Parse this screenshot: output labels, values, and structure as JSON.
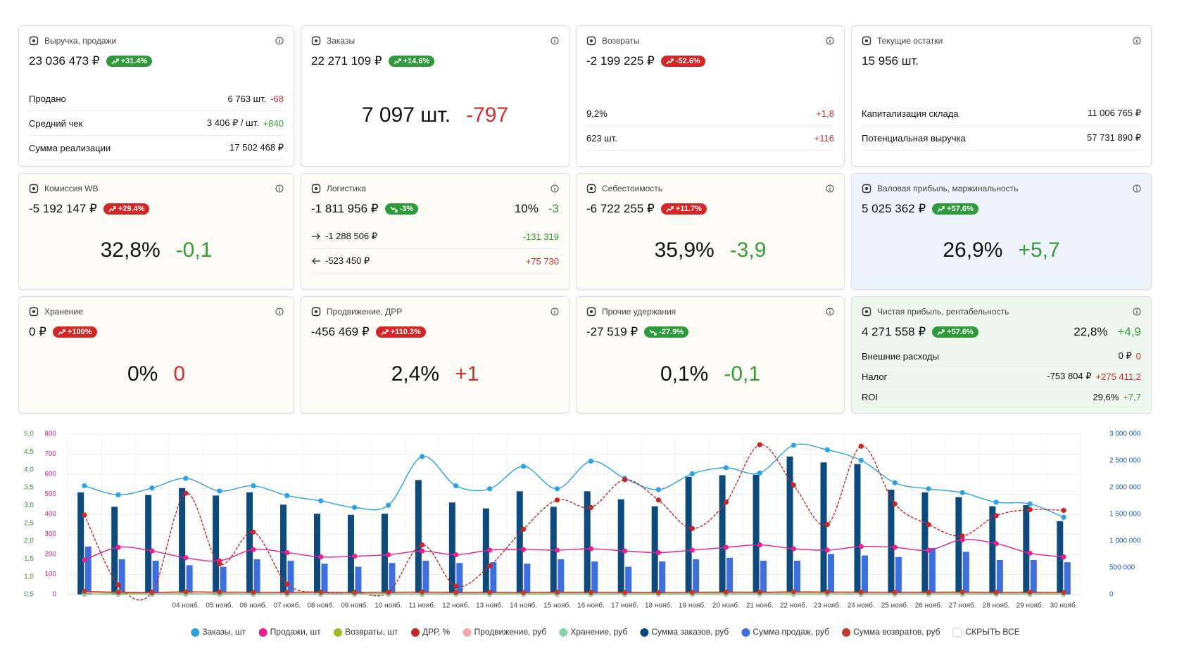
{
  "cards": [
    {
      "title": "Выручка, продажи",
      "value": "23 036 473 ₽",
      "background": "#ffffff",
      "badge": {
        "text": "+31.4%",
        "color": "green",
        "trend": "up"
      },
      "rows": [
        {
          "label": "Продано",
          "value": "6 763 шт.",
          "delta": "-68",
          "color": "red"
        },
        {
          "label": "Средний чек",
          "value": "3 406 ₽ / шт.",
          "delta": "+840",
          "color": "green"
        },
        {
          "label": "Сумма реализации",
          "value": "17 502 468 ₽"
        }
      ]
    },
    {
      "title": "Заказы",
      "value": "22 271 109 ₽",
      "background": "#ffffff",
      "badge": {
        "text": "+14.6%",
        "color": "green",
        "trend": "up"
      },
      "big": {
        "value": "7 097 шт.",
        "delta": "-797",
        "color": "red"
      }
    },
    {
      "title": "Возвраты",
      "value": "-2 199 225 ₽",
      "background": "#ffffff",
      "badge": {
        "text": "-52.6%",
        "color": "red",
        "trend": "up"
      },
      "rows": [
        {
          "label": "9,2%",
          "delta": "+1,8",
          "color": "red"
        },
        {
          "label": "623 шт.",
          "delta": "+116",
          "color": "red"
        }
      ]
    },
    {
      "title": "Текущие остатки",
      "value": "15 956 шт.",
      "background": "#ffffff",
      "rows": [
        {
          "label": "Капитализация склада",
          "value": "11 006 765 ₽"
        },
        {
          "label": "Потенциальная выручка",
          "value": "57 731 890 ₽"
        }
      ]
    },
    {
      "title": "Комиссия WB",
      "value": "-5 192 147 ₽",
      "background": "#fdfbf6",
      "badge": {
        "text": "+29.4%",
        "color": "red",
        "trend": "up"
      },
      "big": {
        "value": "32,8%",
        "delta": "-0,1",
        "color": "green"
      }
    },
    {
      "title": "Логистика",
      "value": "-1 811 956 ₽",
      "background": "#fdfbf6",
      "badge": {
        "text": "-3%",
        "color": "green",
        "trend": "down"
      },
      "side": {
        "value": "10%",
        "delta": "-3",
        "color": "green"
      },
      "rows": [
        {
          "direction": "right",
          "label": "-1 288 506 ₽",
          "delta": "-131 319",
          "color": "green"
        },
        {
          "direction": "left",
          "label": "-523 450 ₽",
          "delta": "+75 730",
          "color": "red"
        }
      ]
    },
    {
      "title": "Себестоимость",
      "value": "-6 722 255 ₽",
      "background": "#fdfbf6",
      "badge": {
        "text": "+11.7%",
        "color": "red",
        "trend": "up"
      },
      "big": {
        "value": "35,9%",
        "delta": "-3,9",
        "color": "green"
      }
    },
    {
      "title": "Валовая прибыль, маржинальность",
      "value": "5 025 362 ₽",
      "background": "#eef4fb",
      "badge": {
        "text": "+57.6%",
        "color": "green",
        "trend": "up"
      },
      "big": {
        "value": "26,9%",
        "delta": "+5,7",
        "color": "green"
      }
    },
    {
      "title": "Хранение",
      "value": "0 ₽",
      "background": "#fdfbf6",
      "badge": {
        "text": "+100%",
        "color": "red",
        "trend": "up"
      },
      "big": {
        "value": "0%",
        "delta": "0",
        "color": "red"
      }
    },
    {
      "title": "Продвижение, ДРР",
      "value": "-456 469 ₽",
      "background": "#fdfbf6",
      "badge": {
        "text": "+110.3%",
        "color": "red",
        "trend": "up"
      },
      "big": {
        "value": "2,4%",
        "delta": "+1",
        "color": "red"
      }
    },
    {
      "title": "Прочие удержания",
      "value": "-27 519 ₽",
      "background": "#fdfbf6",
      "badge": {
        "text": "-27.9%",
        "color": "green",
        "trend": "down"
      },
      "big": {
        "value": "0,1%",
        "delta": "-0,1",
        "color": "green"
      }
    },
    {
      "title": "Чистая прибыль, рентабельность",
      "value": "4 271 558 ₽",
      "background": "#eef8ee",
      "badge": {
        "text": "+57.6%",
        "color": "green",
        "trend": "up"
      },
      "side": {
        "value": "22,8%",
        "delta": "+4,9",
        "color": "green"
      },
      "rows": [
        {
          "label": "Внешние расходы",
          "value": "0 ₽",
          "delta": "0",
          "color": "red"
        },
        {
          "label": "Налог",
          "value": "-753 804 ₽",
          "delta": "+275 411,2",
          "color": "red"
        },
        {
          "label": "ROI",
          "value": "29,6%",
          "delta": "+7,7",
          "color": "green"
        }
      ]
    }
  ],
  "chart_data": {
    "type": "combo",
    "categories": [
      null,
      null,
      null,
      "04 нояб.",
      "05 нояб.",
      "06 нояб.",
      "07 нояб.",
      "08 нояб.",
      "09 нояб.",
      "10 нояб.",
      "11 нояб.",
      "12 нояб.",
      "13 нояб.",
      "14 нояб.",
      "15 нояб.",
      "16 нояб.",
      "17 нояб.",
      "18 нояб.",
      "19 нояб.",
      "20 нояб.",
      "21 нояб.",
      "22 нояб.",
      "23 нояб.",
      "24 нояб.",
      "25 нояб.",
      "26 нояб.",
      "27 нояб.",
      "28 нояб.",
      "29 нояб.",
      "30 нояб."
    ],
    "ylim": [
      0,
      800
    ],
    "yticks": [
      0,
      100,
      200,
      300,
      400,
      500,
      600,
      700,
      800
    ],
    "y2lim": [
      0,
      3000000
    ],
    "y2ticks": [
      0,
      {
        "value": 500000,
        "label": "500 000"
      },
      {
        "value": 1000000,
        "label": "1 000 000"
      },
      {
        "value": 1500000,
        "label": "1 500 000"
      },
      {
        "value": 2000000,
        "label": "2 000 000"
      },
      {
        "value": 2500000,
        "label": "2 500 000"
      },
      {
        "value": 3000000,
        "label": "3 000 000"
      }
    ],
    "y3lim": [
      0.5,
      5
    ],
    "y3ticks": [
      {
        "value": 0.5,
        "label": "0,5"
      },
      {
        "value": 1,
        "label": "1,0"
      },
      {
        "value": 1.5,
        "label": "1,5"
      },
      {
        "value": 2,
        "label": "2,0"
      },
      {
        "value": 2.5,
        "label": "2,5"
      },
      {
        "value": 3,
        "label": "3,0"
      },
      {
        "value": 3.5,
        "label": "3,5"
      },
      {
        "value": 4,
        "label": "4,0"
      },
      {
        "value": 4.5,
        "label": "4,5"
      },
      {
        "value": 5,
        "label": "5,0"
      }
    ],
    "grid": true,
    "legend_toggle": "СКРЫТЬ ВСЕ",
    "series": [
      {
        "name": "Заказы, шт",
        "type": "line",
        "axis": "y",
        "color": "#2aa3e6",
        "values": [
          542,
          497,
          531,
          579,
          516,
          542,
          493,
          467,
          434,
          445,
          688,
          542,
          527,
          639,
          527,
          665,
          579,
          523,
          602,
          632,
          606,
          744,
          721,
          669,
          557,
          527,
          508,
          460,
          452,
          385
        ]
      },
      {
        "name": "Продажи, шт",
        "type": "line",
        "axis": "y",
        "color": "#e6208e",
        "values": [
          172,
          235,
          217,
          183,
          168,
          224,
          209,
          187,
          191,
          198,
          217,
          198,
          221,
          224,
          221,
          228,
          217,
          209,
          221,
          235,
          247,
          228,
          221,
          239,
          235,
          221,
          273,
          254,
          206,
          187
        ]
      },
      {
        "name": "Возвраты, шт",
        "type": "line",
        "axis": "y",
        "color": "#a3b82a",
        "values": [
          8,
          6,
          5,
          7,
          6,
          5,
          6,
          5,
          4,
          5,
          6,
          5,
          6,
          5,
          7,
          5,
          6,
          5,
          6,
          7,
          6,
          8,
          7,
          6,
          5,
          6,
          7,
          5,
          6,
          5
        ]
      },
      {
        "name": "ДРР, %",
        "type": "line",
        "axis": "y3",
        "dash": true,
        "color": "#c62828",
        "values": [
          2.73,
          0.77,
          0.56,
          3.34,
          1.36,
          2.25,
          0.79,
          0.56,
          0.56,
          0.56,
          1.89,
          0.73,
          1.3,
          2.33,
          3.15,
          2.94,
          3.72,
          3.15,
          2.35,
          3.09,
          4.7,
          3.57,
          2.46,
          4.66,
          3.04,
          2.46,
          2.14,
          2.71,
          2.88,
          2.86
        ]
      },
      {
        "name": "Продвижение, руб",
        "type": "line",
        "axis": "y2",
        "color": "#f2a7aa",
        "values": [
          30000,
          45000,
          20000,
          15000,
          35000,
          10000,
          25000,
          12000,
          8000,
          10000,
          15000,
          12000,
          10000,
          8000,
          14000,
          10000,
          12000,
          9000,
          11000,
          12000,
          13000,
          14000,
          15000,
          16000,
          13000,
          12000,
          14000,
          11000,
          12000,
          10000
        ]
      },
      {
        "name": "Хранение, руб",
        "type": "line",
        "axis": "y2",
        "color": "#8fd1a8",
        "values": [
          0,
          0,
          0,
          0,
          0,
          0,
          0,
          0,
          0,
          0,
          0,
          0,
          0,
          0,
          0,
          0,
          0,
          0,
          0,
          0,
          0,
          0,
          0,
          0,
          0,
          0,
          0,
          0,
          0,
          0
        ]
      },
      {
        "name": "Сумма заказов, руб",
        "type": "bar",
        "axis": "y2",
        "color": "#0d4a80",
        "values": [
          1910000,
          1640000,
          1860000,
          1990000,
          1850000,
          1910000,
          1680000,
          1510000,
          1490000,
          1510000,
          2140000,
          1720000,
          1610000,
          1930000,
          1640000,
          1930000,
          1780000,
          1650000,
          2200000,
          2230000,
          2240000,
          2580000,
          2470000,
          2440000,
          1960000,
          1910000,
          1820000,
          1650000,
          1670000,
          1370000
        ]
      },
      {
        "name": "Сумма продаж, руб",
        "type": "bar",
        "axis": "y2",
        "color": "#3d6fe3",
        "values": [
          897000,
          659000,
          631000,
          547000,
          519000,
          659000,
          631000,
          575000,
          519000,
          589000,
          631000,
          589000,
          603000,
          575000,
          659000,
          617000,
          519000,
          617000,
          659000,
          687000,
          631000,
          631000,
          757000,
          729000,
          701000,
          869000,
          799000,
          645000,
          645000,
          603000
        ]
      },
      {
        "name": "Сумма возвратов, руб",
        "type": "line",
        "axis": "y2",
        "color": "#c0392b",
        "values": [
          60000,
          40000,
          35000,
          50000,
          45000,
          40000,
          38000,
          42000,
          36000,
          40000,
          45000,
          38000,
          40000,
          36000,
          42000,
          40000,
          38000,
          36000,
          40000,
          45000,
          42000,
          50000,
          46000,
          44000,
          40000,
          42000,
          45000,
          38000,
          40000,
          36000
        ]
      }
    ]
  }
}
